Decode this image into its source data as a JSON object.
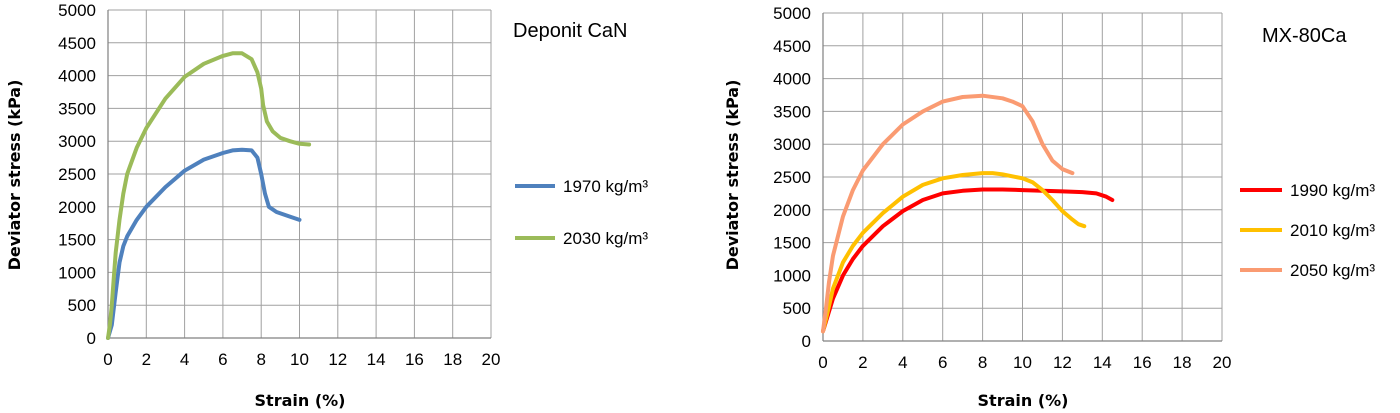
{
  "chart_data": [
    {
      "type": "line",
      "title": "Deponit CaN",
      "xlabel": "Strain (%)",
      "ylabel": "Deviator stress (kPa)",
      "xlim": [
        0,
        20
      ],
      "ylim": [
        0,
        5000
      ],
      "xticks": [
        "0",
        "2",
        "4",
        "6",
        "8",
        "10",
        "12",
        "14",
        "16",
        "18",
        "20"
      ],
      "yticks": [
        "0",
        "500",
        "1000",
        "1500",
        "2000",
        "2500",
        "3000",
        "3500",
        "4000",
        "4500",
        "5000"
      ],
      "grid": true,
      "legend_position": "right",
      "series": [
        {
          "name": "1970 kg/m³",
          "color": "#4f81bd",
          "points": [
            [
              0,
              0
            ],
            [
              0.2,
              200
            ],
            [
              0.4,
              700
            ],
            [
              0.6,
              1150
            ],
            [
              0.8,
              1400
            ],
            [
              1,
              1550
            ],
            [
              1.5,
              1800
            ],
            [
              2,
              2000
            ],
            [
              3,
              2300
            ],
            [
              4,
              2550
            ],
            [
              5,
              2720
            ],
            [
              6,
              2820
            ],
            [
              6.5,
              2860
            ],
            [
              7,
              2870
            ],
            [
              7.5,
              2860
            ],
            [
              7.8,
              2750
            ],
            [
              8,
              2500
            ],
            [
              8.2,
              2200
            ],
            [
              8.4,
              2000
            ],
            [
              8.8,
              1920
            ],
            [
              9.5,
              1850
            ],
            [
              10,
              1800
            ]
          ]
        },
        {
          "name": "2030 kg/m³",
          "color": "#9bbb59",
          "points": [
            [
              0,
              0
            ],
            [
              0.1,
              200
            ],
            [
              0.2,
              500
            ],
            [
              0.3,
              900
            ],
            [
              0.4,
              1300
            ],
            [
              0.6,
              1800
            ],
            [
              0.8,
              2200
            ],
            [
              1,
              2500
            ],
            [
              1.5,
              2900
            ],
            [
              2,
              3200
            ],
            [
              3,
              3650
            ],
            [
              4,
              3980
            ],
            [
              5,
              4180
            ],
            [
              6,
              4300
            ],
            [
              6.5,
              4340
            ],
            [
              7,
              4340
            ],
            [
              7.5,
              4250
            ],
            [
              7.8,
              4050
            ],
            [
              8,
              3800
            ],
            [
              8.1,
              3550
            ],
            [
              8.3,
              3300
            ],
            [
              8.6,
              3150
            ],
            [
              9,
              3050
            ],
            [
              9.5,
              3000
            ],
            [
              10,
              2960
            ],
            [
              10.5,
              2950
            ]
          ]
        }
      ]
    },
    {
      "type": "line",
      "title": "MX-80Ca",
      "xlabel": "Strain (%)",
      "ylabel": "Deviator stress (kPa)",
      "xlim": [
        0,
        20
      ],
      "ylim": [
        0,
        5000
      ],
      "xticks": [
        "0",
        "2",
        "4",
        "6",
        "8",
        "10",
        "12",
        "14",
        "16",
        "18",
        "20"
      ],
      "yticks": [
        "0",
        "500",
        "1000",
        "1500",
        "2000",
        "2500",
        "3000",
        "3500",
        "4000",
        "4500",
        "5000"
      ],
      "grid": true,
      "legend_position": "right",
      "series": [
        {
          "name": "1990 kg/m³",
          "color": "#ff0000",
          "points": [
            [
              0,
              150
            ],
            [
              0.2,
              350
            ],
            [
              0.5,
              650
            ],
            [
              1,
              1000
            ],
            [
              1.5,
              1250
            ],
            [
              2,
              1450
            ],
            [
              3,
              1750
            ],
            [
              4,
              1980
            ],
            [
              5,
              2150
            ],
            [
              6,
              2250
            ],
            [
              7,
              2290
            ],
            [
              8,
              2310
            ],
            [
              9,
              2310
            ],
            [
              10,
              2300
            ],
            [
              11,
              2290
            ],
            [
              12,
              2280
            ],
            [
              13,
              2270
            ],
            [
              13.7,
              2250
            ],
            [
              14.2,
              2200
            ],
            [
              14.5,
              2150
            ]
          ]
        },
        {
          "name": "2010 kg/m³",
          "color": "#ffc000",
          "points": [
            [
              0,
              150
            ],
            [
              0.2,
              400
            ],
            [
              0.5,
              800
            ],
            [
              1,
              1200
            ],
            [
              1.5,
              1450
            ],
            [
              2,
              1650
            ],
            [
              3,
              1950
            ],
            [
              4,
              2200
            ],
            [
              5,
              2380
            ],
            [
              6,
              2480
            ],
            [
              7,
              2530
            ],
            [
              8,
              2560
            ],
            [
              8.5,
              2560
            ],
            [
              9,
              2540
            ],
            [
              10,
              2480
            ],
            [
              10.5,
              2420
            ],
            [
              11,
              2300
            ],
            [
              11.5,
              2150
            ],
            [
              12,
              1980
            ],
            [
              12.5,
              1850
            ],
            [
              12.8,
              1780
            ],
            [
              13.1,
              1750
            ]
          ]
        },
        {
          "name": "2050 kg/m³",
          "color": "#fa9b72",
          "points": [
            [
              0,
              150
            ],
            [
              0.15,
              500
            ],
            [
              0.3,
              900
            ],
            [
              0.5,
              1300
            ],
            [
              1,
              1900
            ],
            [
              1.5,
              2300
            ],
            [
              2,
              2600
            ],
            [
              3,
              3000
            ],
            [
              4,
              3300
            ],
            [
              5,
              3500
            ],
            [
              6,
              3650
            ],
            [
              7,
              3720
            ],
            [
              8,
              3740
            ],
            [
              9,
              3700
            ],
            [
              9.5,
              3650
            ],
            [
              10,
              3580
            ],
            [
              10.5,
              3350
            ],
            [
              11,
              3000
            ],
            [
              11.5,
              2750
            ],
            [
              12,
              2620
            ],
            [
              12.5,
              2560
            ]
          ]
        }
      ]
    }
  ]
}
